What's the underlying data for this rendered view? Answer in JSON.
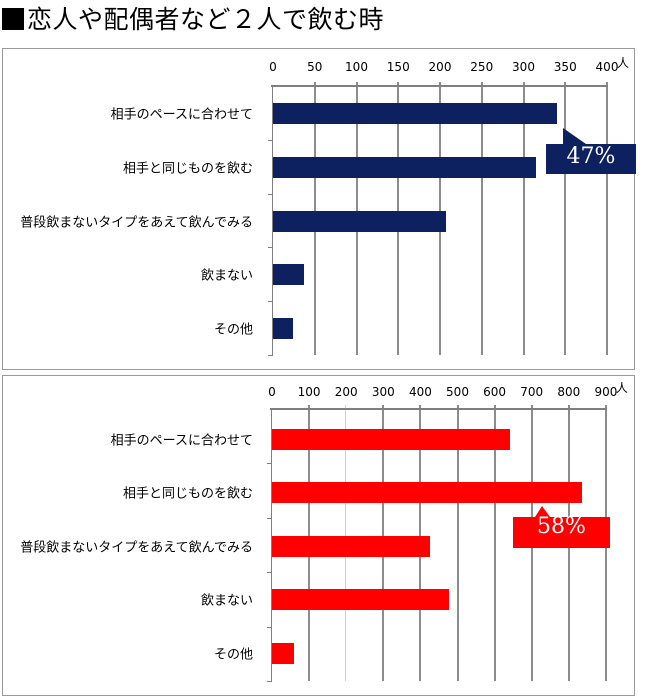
{
  "title": "恋人や配偶者など２人で飲む時",
  "colors": {
    "top_bar": "#0d2060",
    "bottom_bar": "#ff0000",
    "grid": "#8c8c8c",
    "frame": "#9a9a9a"
  },
  "charts": {
    "top": {
      "unit": "人",
      "ticks": [
        "0",
        "50",
        "100",
        "150",
        "200",
        "250",
        "300",
        "350",
        "400"
      ],
      "callout": "47%"
    },
    "bottom": {
      "unit": "人",
      "ticks": [
        "0",
        "100",
        "200",
        "300",
        "400",
        "500",
        "600",
        "700",
        "800",
        "900"
      ],
      "callout": "58%"
    }
  },
  "categories": [
    "相手のペースに合わせて",
    "相手と同じものを飲む",
    "普段飲まないタイプをあえて飲んでみる",
    "飲まない",
    "その他"
  ],
  "chart_data": [
    {
      "type": "bar",
      "orientation": "horizontal",
      "title": "恋人や配偶者など２人で飲む時",
      "categories": [
        "相手のペースに合わせて",
        "相手と同じものを飲む",
        "普段飲まないタイプをあえて飲んでみる",
        "飲まない",
        "その他"
      ],
      "values": [
        340,
        315,
        207,
        37,
        24
      ],
      "xlabel": "人",
      "ylabel": "",
      "xlim": [
        0,
        400
      ],
      "xticks": [
        0,
        50,
        100,
        150,
        200,
        250,
        300,
        350,
        400
      ],
      "grid": true,
      "color": "#0d2060",
      "annotations": [
        {
          "text": "47%",
          "target": "相手のペースに合わせて"
        }
      ]
    },
    {
      "type": "bar",
      "orientation": "horizontal",
      "title": "恋人や配偶者など２人で飲む時",
      "categories": [
        "相手のペースに合わせて",
        "相手と同じものを飲む",
        "普段飲まないタイプをあえて飲んでみる",
        "飲まない",
        "その他"
      ],
      "values": [
        641,
        835,
        426,
        477,
        59
      ],
      "xlabel": "人",
      "ylabel": "",
      "xlim": [
        0,
        900
      ],
      "xticks": [
        0,
        100,
        200,
        300,
        400,
        500,
        600,
        700,
        800,
        900
      ],
      "grid": true,
      "color": "#ff0000",
      "annotations": [
        {
          "text": "58%",
          "target": "相手と同じものを飲む"
        }
      ]
    }
  ]
}
